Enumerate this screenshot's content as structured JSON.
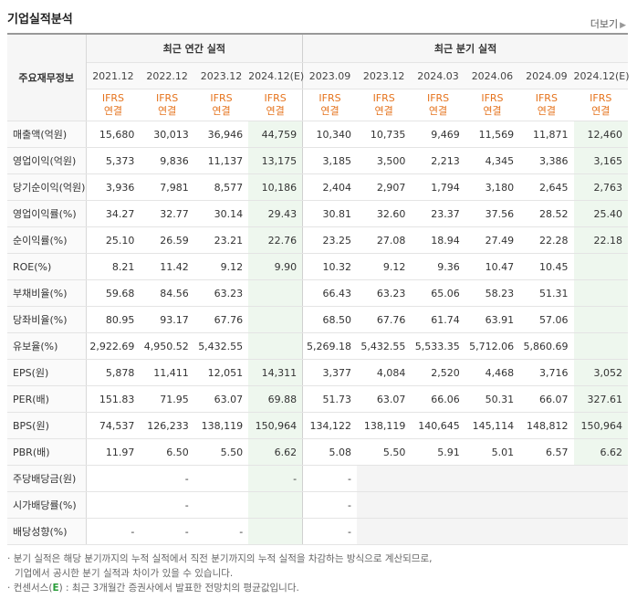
{
  "header": {
    "title": "기업실적분석",
    "more_label": "더보기"
  },
  "table": {
    "label_header": "주요재무정보",
    "group_annual": "최근 연간 실적",
    "group_quarterly": "최근 분기 실적",
    "periods": [
      "2021.12",
      "2022.12",
      "2023.12",
      "2024.12(E)",
      "2023.09",
      "2023.12",
      "2024.03",
      "2024.06",
      "2024.09",
      "2024.12(E)"
    ],
    "std_top": "IFRS",
    "std_bottom": "연결",
    "rows": [
      {
        "label": "매출액(억원)",
        "values": [
          "15,680",
          "30,013",
          "36,946",
          "44,759",
          "10,340",
          "10,735",
          "9,469",
          "11,569",
          "11,871",
          "12,460"
        ]
      },
      {
        "label": "영업이익(억원)",
        "values": [
          "5,373",
          "9,836",
          "11,137",
          "13,175",
          "3,185",
          "3,500",
          "2,213",
          "4,345",
          "3,386",
          "3,165"
        ]
      },
      {
        "label": "당기순이익(억원)",
        "values": [
          "3,936",
          "7,981",
          "8,577",
          "10,186",
          "2,404",
          "2,907",
          "1,794",
          "3,180",
          "2,645",
          "2,763"
        ]
      },
      {
        "label": "영업이익률(%)",
        "values": [
          "34.27",
          "32.77",
          "30.14",
          "29.43",
          "30.81",
          "32.60",
          "23.37",
          "37.56",
          "28.52",
          "25.40"
        ]
      },
      {
        "label": "순이익률(%)",
        "values": [
          "25.10",
          "26.59",
          "23.21",
          "22.76",
          "23.25",
          "27.08",
          "18.94",
          "27.49",
          "22.28",
          "22.18"
        ]
      },
      {
        "label": "ROE(%)",
        "values": [
          "8.21",
          "11.42",
          "9.12",
          "9.90",
          "10.32",
          "9.12",
          "9.36",
          "10.47",
          "10.45",
          ""
        ]
      },
      {
        "label": "부채비율(%)",
        "values": [
          "59.68",
          "84.56",
          "63.23",
          "",
          "66.43",
          "63.23",
          "65.06",
          "58.23",
          "51.31",
          ""
        ]
      },
      {
        "label": "당좌비율(%)",
        "values": [
          "80.95",
          "93.17",
          "67.76",
          "",
          "68.50",
          "67.76",
          "61.74",
          "63.91",
          "57.06",
          ""
        ]
      },
      {
        "label": "유보율(%)",
        "values": [
          "2,922.69",
          "4,950.52",
          "5,432.55",
          "",
          "5,269.18",
          "5,432.55",
          "5,533.35",
          "5,712.06",
          "5,860.69",
          ""
        ]
      },
      {
        "label": "EPS(원)",
        "values": [
          "5,878",
          "11,411",
          "12,051",
          "14,311",
          "3,377",
          "4,084",
          "2,520",
          "4,468",
          "3,716",
          "3,052"
        ]
      },
      {
        "label": "PER(배)",
        "values": [
          "151.83",
          "71.95",
          "63.07",
          "69.88",
          "51.73",
          "63.07",
          "66.06",
          "50.31",
          "66.07",
          "327.61"
        ]
      },
      {
        "label": "BPS(원)",
        "values": [
          "74,537",
          "126,233",
          "138,119",
          "150,964",
          "134,122",
          "138,119",
          "140,645",
          "145,114",
          "148,812",
          "150,964"
        ]
      },
      {
        "label": "PBR(배)",
        "values": [
          "11.97",
          "6.50",
          "5.50",
          "6.62",
          "5.08",
          "5.50",
          "5.91",
          "5.01",
          "6.57",
          "6.62"
        ]
      },
      {
        "label": "주당배당금(원)",
        "values": [
          "",
          "-",
          "",
          "-",
          "-",
          "",
          "",
          "",
          "",
          ""
        ]
      },
      {
        "label": "시가배당률(%)",
        "values": [
          "",
          "-",
          "",
          "",
          "-",
          "",
          "",
          "",
          "",
          ""
        ]
      },
      {
        "label": "배당성향(%)",
        "values": [
          "-",
          "-",
          "-",
          "",
          "-",
          "",
          "",
          "",
          "",
          ""
        ]
      }
    ]
  },
  "notes": {
    "line1": "분기 실적은 해당 분기까지의 누적 실적에서 직전 분기까지의 누적 실적을 차감하는 방식으로 계산되므로,",
    "line2": "기업에서 공시한 분기 실적과 차이가 있을 수 있습니다.",
    "line3_pre": "컨센서스(",
    "line3_e": "E",
    "line3_post": ") : 최근 3개월간 증권사에서 발표한 전망치의 평균값입니다."
  }
}
